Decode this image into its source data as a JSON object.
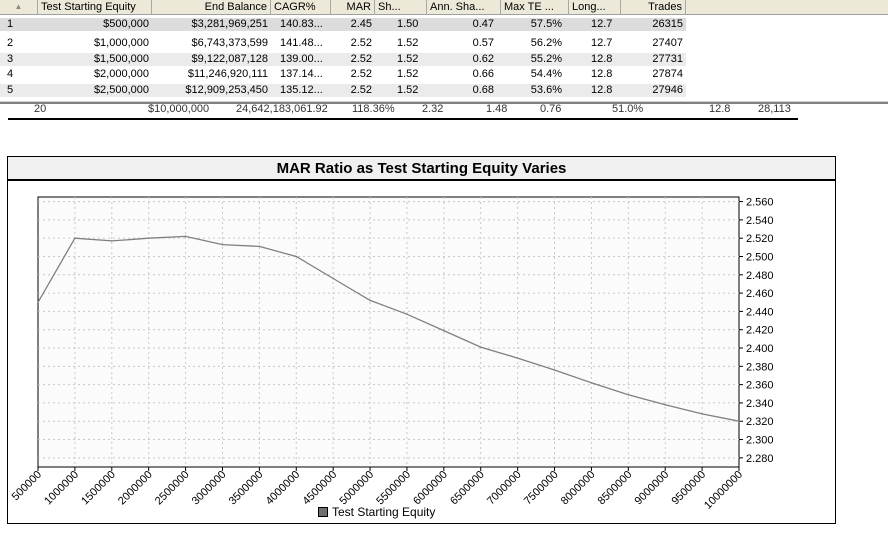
{
  "grid": {
    "sort_glyph": "▲",
    "columns": [
      "Test Starting Equity",
      "End Balance",
      "CAGR%",
      "MAR",
      "Sh...",
      "Ann. Sha...",
      "Max TE ...",
      "Long...",
      "Trades"
    ],
    "rows": [
      {
        "num": "1",
        "equity": "$500,000",
        "end": "$3,281,969,251",
        "cagr": "140.83...",
        "mar": "2.45",
        "sharpe": "1.50",
        "ann": "0.47",
        "maxte": "57.5%",
        "long": "12.7",
        "trades": "26315"
      },
      {
        "num": "2",
        "equity": "$1,000,000",
        "end": "$6,743,373,599",
        "cagr": "141.48...",
        "mar": "2.52",
        "sharpe": "1.52",
        "ann": "0.57",
        "maxte": "56.2%",
        "long": "12.7",
        "trades": "27407"
      },
      {
        "num": "3",
        "equity": "$1,500,000",
        "end": "$9,122,087,128",
        "cagr": "139.00...",
        "mar": "2.52",
        "sharpe": "1.52",
        "ann": "0.62",
        "maxte": "55.2%",
        "long": "12.8",
        "trades": "27731"
      },
      {
        "num": "4",
        "equity": "$2,000,000",
        "end": "$11,246,920,111",
        "cagr": "137.14...",
        "mar": "2.52",
        "sharpe": "1.52",
        "ann": "0.66",
        "maxte": "54.4%",
        "long": "12.8",
        "trades": "27874"
      },
      {
        "num": "5",
        "equity": "$2,500,000",
        "end": "$12,909,253,450",
        "cagr": "135.12...",
        "mar": "2.52",
        "sharpe": "1.52",
        "ann": "0.68",
        "maxte": "53.6%",
        "long": "12.8",
        "trades": "27946"
      }
    ]
  },
  "summary": {
    "num": "20",
    "equity": "$10,000,000",
    "end": "24,642,183,061.92",
    "cagr": "118.36%",
    "mar": "2.32",
    "sharpe": "1.48",
    "ann": "0.76",
    "maxte": "51.0%",
    "long": "12.8",
    "trades": "28,113"
  },
  "colors": {
    "line": "#808080",
    "grid": "#c8c8c8",
    "plot_bg": "#fbfbfb",
    "legend_swatch": "#707070"
  },
  "chart_data": {
    "type": "line",
    "title": "MAR Ratio as Test Starting Equity Varies",
    "xlabel": "",
    "ylabel": "",
    "x": [
      500000,
      1000000,
      1500000,
      2000000,
      2500000,
      3000000,
      3500000,
      4000000,
      4500000,
      5000000,
      5500000,
      6000000,
      6500000,
      7000000,
      7500000,
      8000000,
      8500000,
      9000000,
      9500000,
      10000000
    ],
    "series": [
      {
        "name": "Test Starting Equity",
        "values": [
          2.45,
          2.52,
          2.517,
          2.52,
          2.522,
          2.513,
          2.511,
          2.5,
          2.476,
          2.452,
          2.437,
          2.419,
          2.401,
          2.389,
          2.376,
          2.362,
          2.349,
          2.338,
          2.328,
          2.32
        ]
      }
    ],
    "x_ticks": [
      "500000",
      "1000000",
      "1500000",
      "2000000",
      "2500000",
      "3000000",
      "3500000",
      "4000000",
      "4500000",
      "5000000",
      "5500000",
      "6000000",
      "6500000",
      "7000000",
      "7500000",
      "8000000",
      "8500000",
      "9000000",
      "9500000",
      "10000000"
    ],
    "y_ticks": [
      "2.560",
      "2.540",
      "2.520",
      "2.500",
      "2.480",
      "2.460",
      "2.440",
      "2.420",
      "2.400",
      "2.380",
      "2.360",
      "2.340",
      "2.320",
      "2.300",
      "2.280"
    ],
    "xlim": [
      500000,
      10000000
    ],
    "ylim": [
      2.27,
      2.565
    ],
    "grid": true,
    "legend": "bottom-center"
  }
}
